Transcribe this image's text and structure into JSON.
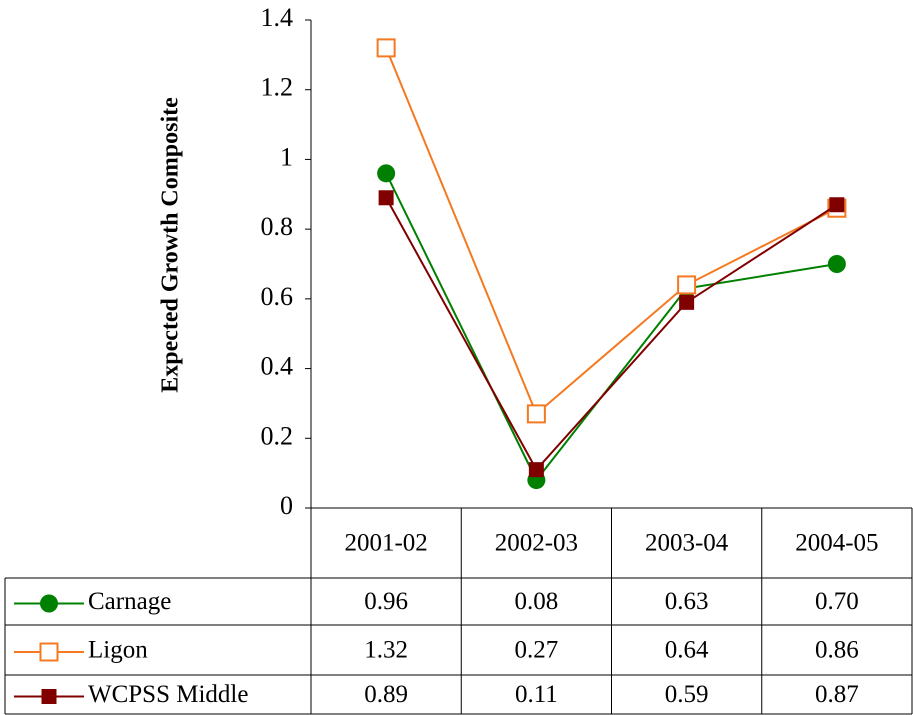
{
  "chart_data": {
    "type": "line",
    "y_label": "Expected Growth Composite",
    "categories": [
      "2001-02",
      "2002-03",
      "2003-04",
      "2004-05"
    ],
    "series": [
      {
        "name": "Carnage",
        "color": "#008000",
        "marker": "circle",
        "values": [
          0.96,
          0.08,
          0.63,
          0.7
        ],
        "value_labels": [
          "0.96",
          "0.08",
          "0.63",
          "0.70"
        ]
      },
      {
        "name": "Ligon",
        "color": "#f47920",
        "marker": "open-square",
        "values": [
          1.32,
          0.27,
          0.64,
          0.86
        ],
        "value_labels": [
          "1.32",
          "0.27",
          "0.64",
          "0.86"
        ]
      },
      {
        "name": "WCPSS Middle",
        "color": "#800000",
        "marker": "square",
        "values": [
          0.89,
          0.11,
          0.59,
          0.87
        ],
        "value_labels": [
          "0.89",
          "0.11",
          "0.59",
          "0.87"
        ]
      }
    ],
    "ylim": [
      0,
      1.4
    ],
    "yticks": [
      0,
      0.2,
      0.4,
      0.6,
      0.8,
      1,
      1.2,
      1.4
    ],
    "grid": false
  }
}
